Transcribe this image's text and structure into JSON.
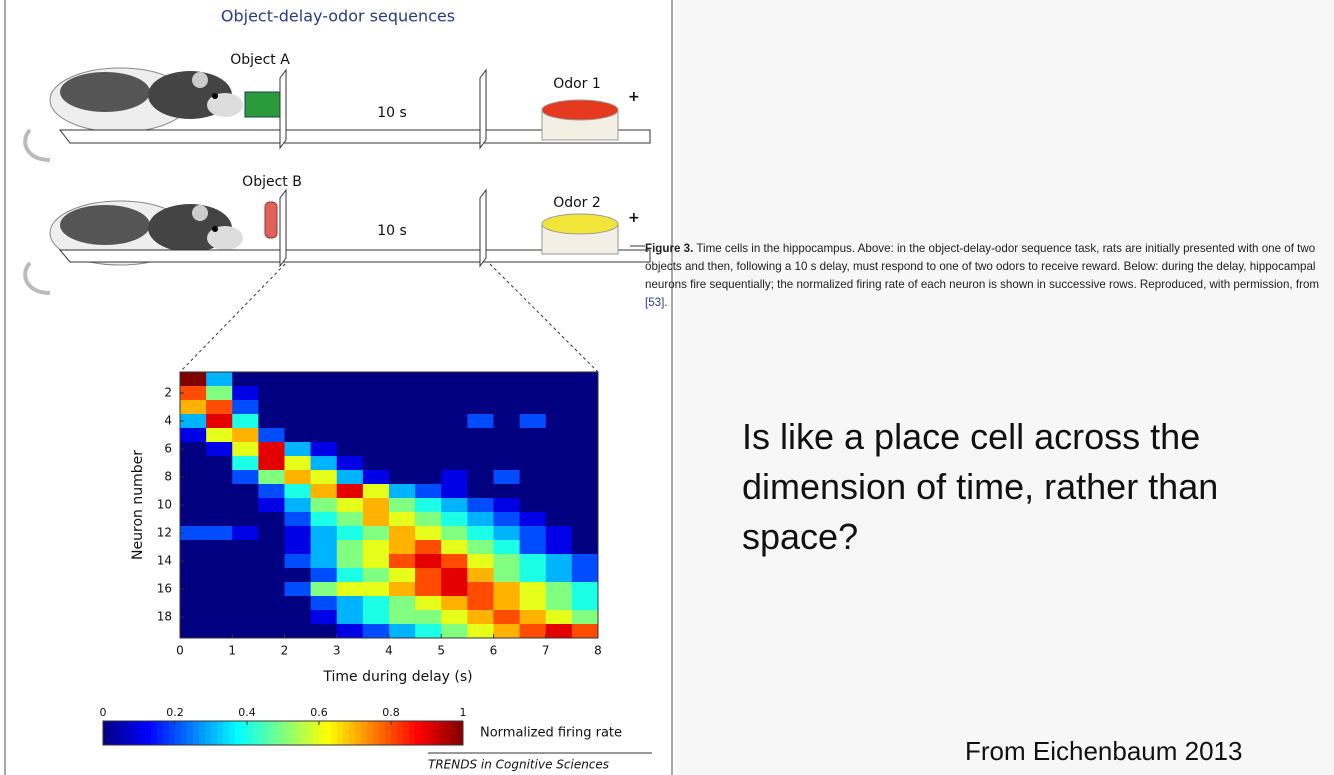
{
  "figure": {
    "title": "Object-delay-odor sequences",
    "trials": [
      {
        "object": "Object A",
        "delay": "10 s",
        "odor": "Odor 1",
        "reward": "+"
      },
      {
        "object": "Object B",
        "delay": "10 s",
        "odor": "Odor 2",
        "reward": "+"
      }
    ],
    "source": "TRENDS in Cognitive Sciences"
  },
  "chart_data": {
    "type": "heatmap",
    "xlabel": "Time during delay (s)",
    "ylabel": "Neuron number",
    "xbins": [
      0,
      0.5,
      1,
      1.5,
      2,
      2.5,
      3,
      3.5,
      4,
      4.5,
      5,
      5.5,
      6,
      6.5,
      7,
      7.5,
      8
    ],
    "y": [
      1,
      2,
      3,
      4,
      5,
      6,
      7,
      8,
      9,
      10,
      11,
      12,
      13,
      14,
      15,
      16,
      17,
      18,
      19
    ],
    "values": [
      [
        1,
        0.3,
        0,
        0,
        0,
        0,
        0,
        0,
        0,
        0,
        0,
        0,
        0,
        0,
        0,
        0
      ],
      [
        0.8,
        0.5,
        0.1,
        0,
        0,
        0,
        0,
        0,
        0,
        0,
        0,
        0,
        0,
        0,
        0,
        0
      ],
      [
        0.7,
        0.8,
        0.2,
        0,
        0,
        0,
        0,
        0,
        0,
        0,
        0,
        0,
        0,
        0,
        0,
        0
      ],
      [
        0.3,
        0.9,
        0.4,
        0,
        0,
        0,
        0,
        0,
        0,
        0,
        0,
        0.2,
        0,
        0.2,
        0,
        0
      ],
      [
        0.1,
        0.6,
        0.7,
        0.2,
        0,
        0,
        0,
        0,
        0,
        0,
        0,
        0,
        0,
        0,
        0,
        0
      ],
      [
        0,
        0.1,
        0.6,
        0.9,
        0.3,
        0.1,
        0,
        0,
        0,
        0,
        0,
        0,
        0,
        0,
        0,
        0
      ],
      [
        0,
        0,
        0.4,
        0.9,
        0.6,
        0.3,
        0.1,
        0,
        0,
        0,
        0,
        0,
        0,
        0,
        0,
        0
      ],
      [
        0,
        0,
        0.2,
        0.5,
        0.7,
        0.6,
        0.3,
        0.1,
        0,
        0,
        0.1,
        0,
        0.2,
        0,
        0,
        0
      ],
      [
        0,
        0,
        0,
        0.2,
        0.4,
        0.7,
        0.9,
        0.6,
        0.3,
        0.2,
        0.1,
        0,
        0,
        0,
        0,
        0
      ],
      [
        0,
        0,
        0,
        0.1,
        0.3,
        0.5,
        0.6,
        0.7,
        0.5,
        0.4,
        0.3,
        0.2,
        0.1,
        0,
        0,
        0
      ],
      [
        0,
        0,
        0,
        0,
        0.2,
        0.4,
        0.5,
        0.7,
        0.6,
        0.5,
        0.4,
        0.3,
        0.2,
        0.1,
        0,
        0
      ],
      [
        0.2,
        0.2,
        0.1,
        0,
        0.1,
        0.3,
        0.4,
        0.5,
        0.7,
        0.6,
        0.5,
        0.4,
        0.3,
        0.2,
        0.1,
        0
      ],
      [
        0,
        0,
        0,
        0,
        0.1,
        0.3,
        0.5,
        0.6,
        0.7,
        0.8,
        0.6,
        0.5,
        0.4,
        0.2,
        0.1,
        0
      ],
      [
        0,
        0,
        0,
        0,
        0.2,
        0.3,
        0.5,
        0.6,
        0.8,
        0.9,
        0.8,
        0.6,
        0.5,
        0.4,
        0.3,
        0.2
      ],
      [
        0,
        0,
        0,
        0,
        0,
        0.2,
        0.4,
        0.5,
        0.6,
        0.8,
        0.9,
        0.7,
        0.5,
        0.4,
        0.3,
        0.2
      ],
      [
        0,
        0,
        0,
        0,
        0.2,
        0.5,
        0.6,
        0.6,
        0.7,
        0.8,
        0.9,
        0.8,
        0.7,
        0.6,
        0.5,
        0.4
      ],
      [
        0,
        0,
        0,
        0,
        0,
        0.2,
        0.3,
        0.4,
        0.5,
        0.6,
        0.7,
        0.8,
        0.7,
        0.6,
        0.5,
        0.4
      ],
      [
        0,
        0,
        0,
        0,
        0,
        0.1,
        0.3,
        0.4,
        0.5,
        0.5,
        0.6,
        0.7,
        0.8,
        0.7,
        0.6,
        0.5
      ],
      [
        0,
        0,
        0,
        0,
        0,
        0,
        0.1,
        0.2,
        0.3,
        0.4,
        0.5,
        0.6,
        0.7,
        0.8,
        0.9,
        0.8
      ]
    ],
    "xlim": [
      0,
      8
    ],
    "xticks": [
      0,
      1,
      2,
      3,
      4,
      5,
      6,
      7,
      8
    ],
    "ylim": [
      0.5,
      19.5
    ],
    "y_inverted": true,
    "yticks": [
      2,
      4,
      6,
      8,
      10,
      12,
      14,
      16,
      18
    ],
    "colormap": "jet",
    "colorbar": {
      "label": "Normalized firing rate",
      "clim": [
        0,
        1
      ],
      "ticks": [
        0,
        0.2,
        0.4,
        0.6,
        0.8,
        1
      ]
    }
  },
  "caption": {
    "label": "Figure 3.",
    "text": "Time cells in the hippocampus. Above: in the object-delay-odor sequence task, rats are initially presented with one of two objects and then, following a 10 s delay, must respond to one of two odors to receive reward. Below: during the delay, hippocampal neurons fire sequentially; the normalized firing rate of each neuron is shown in successive rows. Reproduced, with permission, from",
    "ref": "[53]",
    "end": "."
  },
  "slide": {
    "question": "Is like a place cell across the dimension of time, rather than space?",
    "credit": "From Eichenbaum 2013"
  }
}
